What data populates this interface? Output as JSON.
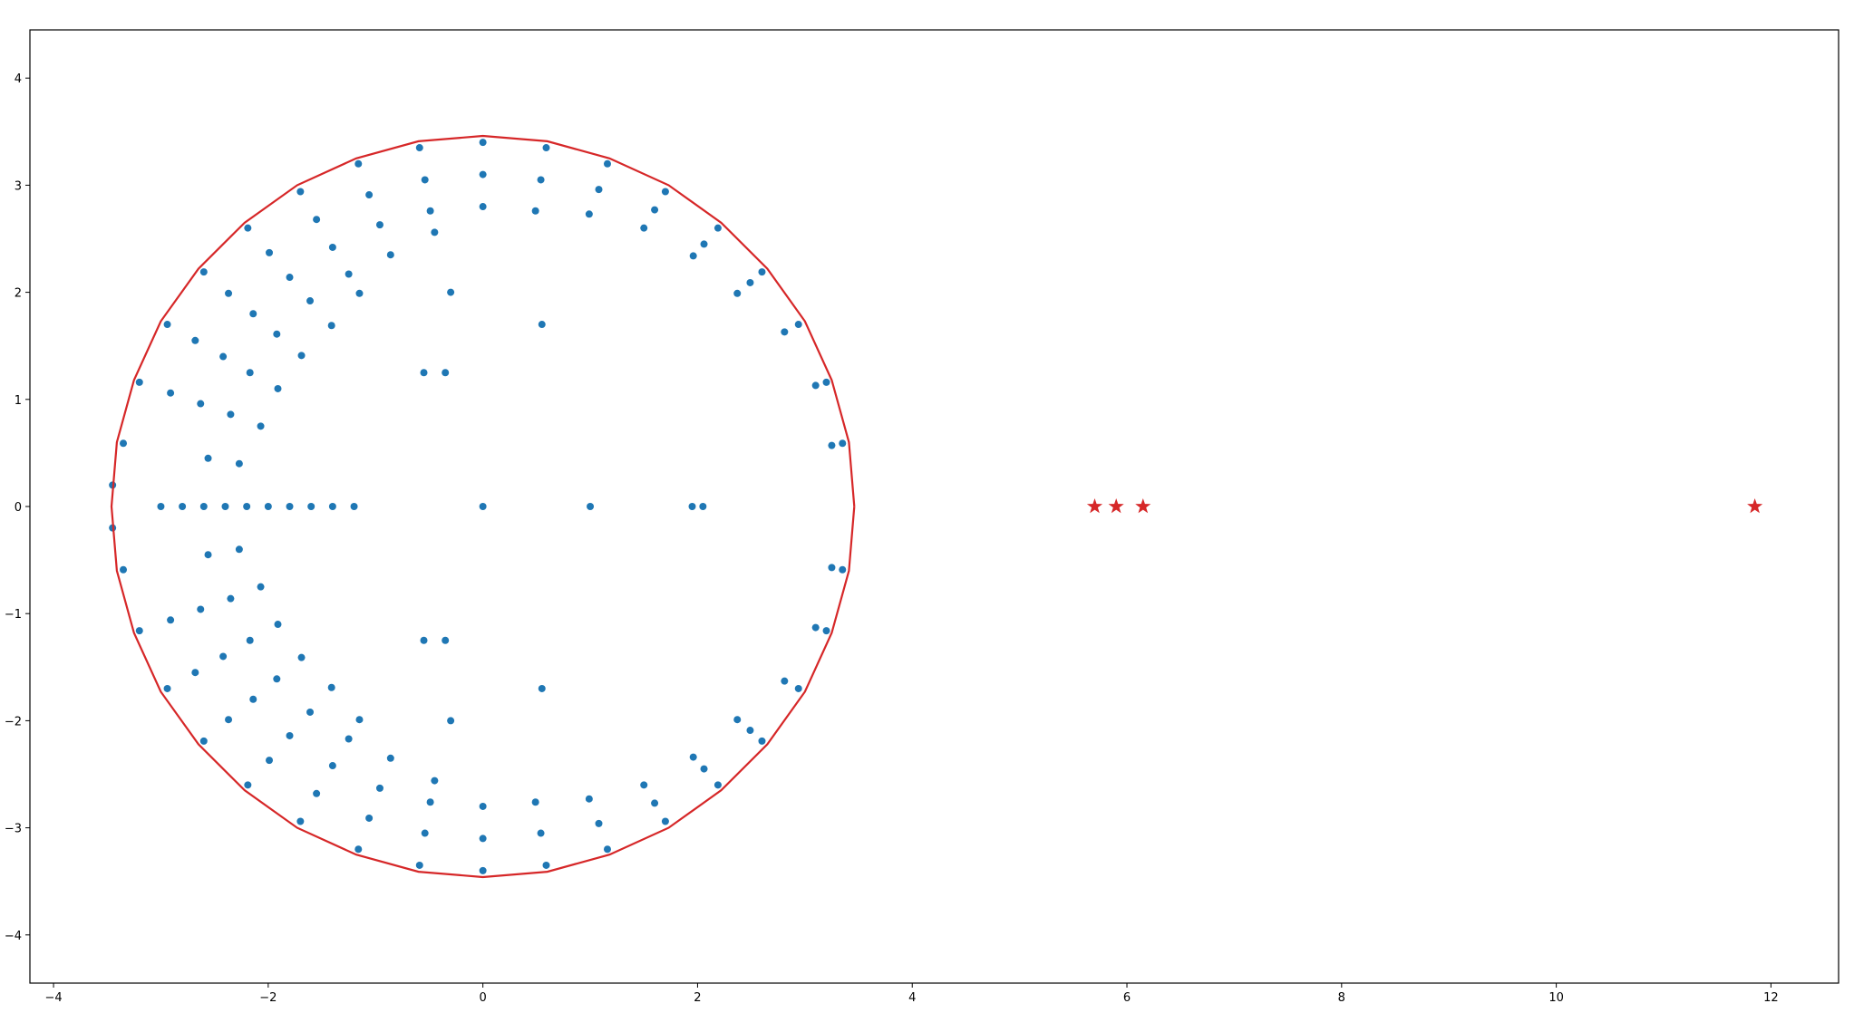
{
  "chart_data": {
    "type": "scatter",
    "xlim": [
      -4.22,
      12.63
    ],
    "ylim": [
      -4.45,
      4.45
    ],
    "xticks": [
      {
        "value": -4,
        "label": "−4"
      },
      {
        "value": -2,
        "label": "−2"
      },
      0,
      2,
      4,
      6,
      8,
      10,
      12
    ],
    "yticks": [
      {
        "value": -4,
        "label": "−4"
      },
      {
        "value": -3,
        "label": "−3"
      },
      {
        "value": -2,
        "label": "−2"
      },
      {
        "value": -1,
        "label": "−1"
      },
      0,
      1,
      2,
      3,
      4
    ],
    "grid": false,
    "series": [
      {
        "marker": "circle",
        "color": "#1f77b4",
        "x": [
          3.35,
          3.25,
          3.2,
          3.1,
          2.94,
          2.81,
          2.6,
          2.49,
          2.37,
          2.19,
          2.06,
          1.96,
          1.7,
          1.6,
          1.5,
          1.16,
          1.08,
          0.99,
          0.59,
          0.54,
          0.49,
          0,
          0,
          0,
          -0.59,
          -0.54,
          -0.49,
          -0.45,
          -1.16,
          -1.06,
          -0.96,
          -0.86,
          -1.7,
          -1.55,
          -1.4,
          -1.25,
          -1.15,
          -2.19,
          -1.99,
          -1.8,
          -1.61,
          -1.41,
          -2.6,
          -2.37,
          -2.14,
          -1.92,
          -1.69,
          -2.94,
          -2.68,
          -2.42,
          -2.17,
          -1.91,
          -3.2,
          -2.91,
          -2.63,
          -2.35,
          -2.07,
          -3.35,
          -2.56,
          -2.27,
          3.35,
          3.25,
          3.2,
          3.1,
          2.94,
          2.81,
          2.6,
          2.49,
          2.37,
          2.19,
          2.06,
          1.96,
          1.7,
          1.6,
          1.5,
          1.16,
          1.08,
          0.99,
          0.59,
          0.54,
          0.49,
          0,
          0,
          0,
          -0.59,
          -0.54,
          -0.49,
          -0.45,
          -1.16,
          -1.06,
          -0.96,
          -0.86,
          -1.7,
          -1.55,
          -1.4,
          -1.25,
          -1.15,
          -2.19,
          -1.99,
          -1.8,
          -1.61,
          -1.41,
          -2.6,
          -2.37,
          -2.14,
          -1.92,
          -1.69,
          -2.94,
          -2.68,
          -2.42,
          -2.17,
          -1.91,
          -3.2,
          -2.91,
          -2.63,
          -2.35,
          -2.07,
          -3.35,
          -2.56,
          -2.27,
          -3,
          -2.8,
          -2.6,
          -2.4,
          -2.2,
          -2.0,
          -1.8,
          -1.6,
          -1.4,
          -1.2,
          0,
          1,
          1.95,
          2.05,
          -0.3,
          -0.55,
          -0.35,
          0.55,
          -0.3,
          -0.55,
          -0.35,
          0.55,
          -3.45,
          -3.45
        ],
        "values": [
          0.59,
          0.57,
          1.16,
          1.13,
          1.7,
          1.63,
          2.19,
          2.09,
          1.99,
          2.6,
          2.45,
          2.34,
          2.94,
          2.77,
          2.6,
          3.2,
          2.96,
          2.73,
          3.35,
          3.05,
          2.76,
          3.4,
          3.1,
          2.8,
          3.35,
          3.05,
          2.76,
          2.56,
          3.2,
          2.91,
          2.63,
          2.35,
          2.94,
          2.68,
          2.42,
          2.17,
          1.99,
          2.6,
          2.37,
          2.14,
          1.92,
          1.69,
          2.19,
          1.99,
          1.8,
          1.61,
          1.41,
          1.7,
          1.55,
          1.4,
          1.25,
          1.1,
          1.16,
          1.06,
          0.96,
          0.86,
          0.75,
          0.59,
          0.45,
          0.4,
          -0.59,
          -0.57,
          -1.16,
          -1.13,
          -1.7,
          -1.63,
          -2.19,
          -2.09,
          -1.99,
          -2.6,
          -2.45,
          -2.34,
          -2.94,
          -2.77,
          -2.6,
          -3.2,
          -2.96,
          -2.73,
          -3.35,
          -3.05,
          -2.76,
          -3.4,
          -3.1,
          -2.8,
          -3.35,
          -3.05,
          -2.76,
          -2.56,
          -3.2,
          -2.91,
          -2.63,
          -2.35,
          -2.94,
          -2.68,
          -2.42,
          -2.17,
          -1.99,
          -2.6,
          -2.37,
          -2.14,
          -1.92,
          -1.69,
          -2.19,
          -1.99,
          -1.8,
          -1.61,
          -1.41,
          -1.7,
          -1.55,
          -1.4,
          -1.25,
          -1.1,
          -1.16,
          -1.06,
          -0.96,
          -0.86,
          -0.75,
          -0.59,
          -0.45,
          -0.4,
          0,
          0,
          0,
          0,
          0,
          0,
          0,
          0,
          0,
          0,
          0,
          0,
          0,
          0,
          2.0,
          1.25,
          1.25,
          1.7,
          -2.0,
          -1.25,
          -1.25,
          -1.7,
          0.2,
          -0.2
        ]
      },
      {
        "marker": "line",
        "color": "#d62728",
        "x": [
          3.46,
          3.41,
          3.25,
          3.0,
          2.65,
          2.22,
          1.73,
          1.18,
          0.6,
          0,
          -0.6,
          -1.18,
          -1.73,
          -2.22,
          -2.65,
          -3.0,
          -3.25,
          -3.41,
          -3.46,
          -3.41,
          -3.25,
          -3.0,
          -2.65,
          -2.22,
          -1.73,
          -1.18,
          -0.6,
          0,
          0.6,
          1.18,
          1.73,
          2.22,
          2.65,
          3.0,
          3.25,
          3.41,
          3.46
        ],
        "values": [
          0,
          0.6,
          1.18,
          1.73,
          2.22,
          2.65,
          3.0,
          3.25,
          3.41,
          3.46,
          3.41,
          3.25,
          3.0,
          2.65,
          2.22,
          1.73,
          1.18,
          0.6,
          0,
          -0.6,
          -1.18,
          -1.73,
          -2.22,
          -2.65,
          -3.0,
          -3.25,
          -3.41,
          -3.46,
          -3.41,
          -3.25,
          -3.0,
          -2.65,
          -2.22,
          -1.73,
          -1.18,
          -0.6,
          0
        ]
      },
      {
        "marker": "star",
        "color": "#d62728",
        "x": [
          5.7,
          5.9,
          6.15,
          11.85
        ],
        "values": [
          0,
          0,
          0,
          0
        ]
      }
    ]
  }
}
